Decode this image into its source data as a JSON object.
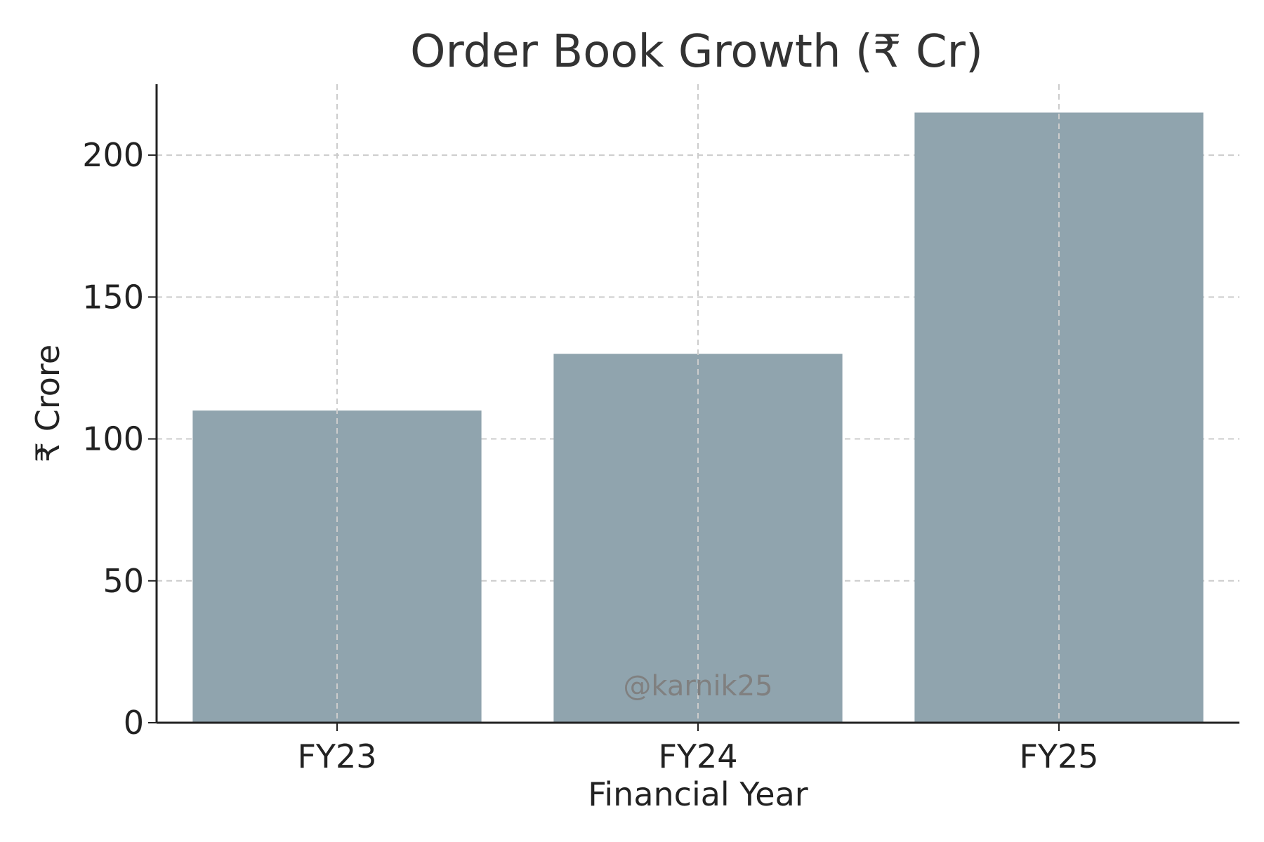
{
  "chart_data": {
    "type": "bar",
    "title": "Order Book Growth (₹ Cr)",
    "xlabel": "Financial Year",
    "ylabel": "₹ Crore",
    "categories": [
      "FY23",
      "FY24",
      "FY25"
    ],
    "values": [
      110,
      130,
      215
    ],
    "ylim": [
      0,
      225
    ],
    "yticks": [
      0,
      50,
      100,
      150,
      200
    ],
    "grid": true,
    "bar_color": "#90a4ae",
    "watermark": "@karnik25"
  }
}
